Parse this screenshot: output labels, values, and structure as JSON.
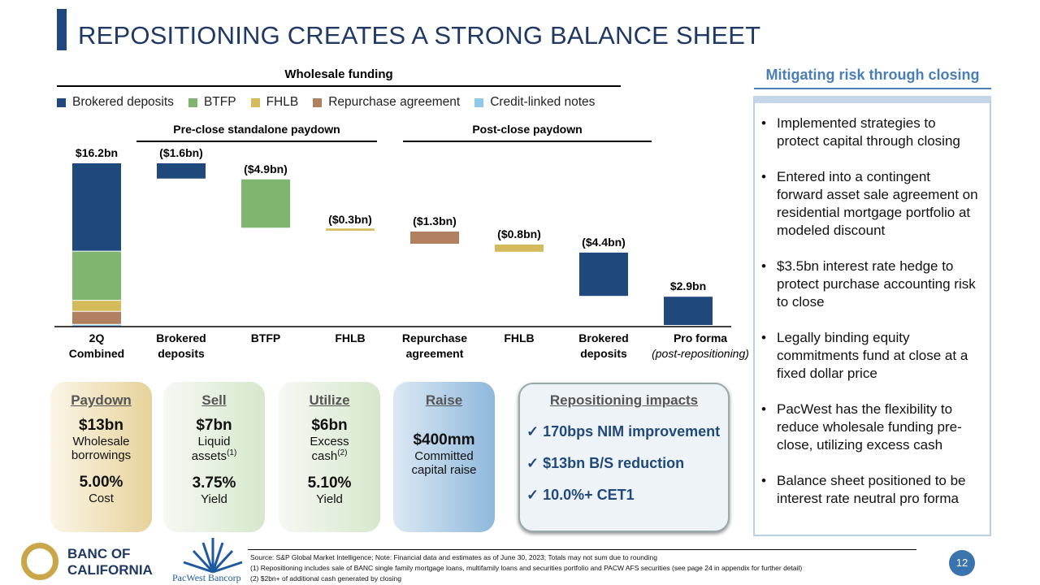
{
  "title": "REPOSITIONING CREATES A STRONG BALANCE SHEET",
  "chart_data": {
    "type": "bar",
    "subtype": "waterfall",
    "title": "Wholesale funding",
    "legend": [
      {
        "name": "Brokered deposits",
        "color": "#1f497d"
      },
      {
        "name": "BTFP",
        "color": "#7fb56f"
      },
      {
        "name": "FHLB",
        "color": "#d4bc5c"
      },
      {
        "name": "Repurchase agreement",
        "color": "#b08060"
      },
      {
        "name": "Credit-linked notes",
        "color": "#8ec8ea"
      }
    ],
    "legend_position": "top",
    "groups": [
      {
        "label": "Pre-close standalone paydown"
      },
      {
        "label": "Post-close paydown"
      }
    ],
    "categories": [
      {
        "label1": "2Q",
        "label2": "Combined"
      },
      {
        "label1": "Brokered",
        "label2": "deposits"
      },
      {
        "label1": "BTFP",
        "label2": ""
      },
      {
        "label1": "FHLB",
        "label2": ""
      },
      {
        "label1": "Repurchase",
        "label2": "agreement"
      },
      {
        "label1": "FHLB",
        "label2": ""
      },
      {
        "label1": "Brokered",
        "label2": "deposits"
      },
      {
        "label1": "Pro forma",
        "label2": "(post-repositioning)"
      }
    ],
    "units": "$bn",
    "total_start": 16.2,
    "stack_start": [
      {
        "series": "Brokered deposits",
        "value": 8.8
      },
      {
        "series": "BTFP",
        "value": 4.9
      },
      {
        "series": "FHLB",
        "value": 1.1
      },
      {
        "series": "Repurchase agreement",
        "value": 1.3
      },
      {
        "series": "Credit-linked notes",
        "value": 0.1
      }
    ],
    "changes": [
      {
        "value": -1.6,
        "series": "Brokered deposits"
      },
      {
        "value": -4.9,
        "series": "BTFP"
      },
      {
        "value": -0.3,
        "series": "FHLB"
      },
      {
        "value": -1.3,
        "series": "Repurchase agreement"
      },
      {
        "value": -0.8,
        "series": "FHLB"
      },
      {
        "value": -4.4,
        "series": "Brokered deposits"
      }
    ],
    "total_end": 2.9,
    "data_labels": [
      "$16.2bn",
      "($1.6bn)",
      "($4.9bn)",
      "($0.3bn)",
      "($1.3bn)",
      "($0.8bn)",
      "($4.4bn)",
      "$2.9bn"
    ],
    "ylim": [
      0,
      16.2
    ],
    "grid": false
  },
  "cards": [
    {
      "head": "Paydown",
      "big": "$13bn",
      "l1": "Wholesale",
      "l2": "borrowings",
      "sup": "",
      "big2": "5.00%",
      "l3": "Cost"
    },
    {
      "head": "Sell",
      "big": "$7bn",
      "l1": "Liquid",
      "l2": "assets",
      "sup": "(1)",
      "big2": "3.75%",
      "l3": "Yield"
    },
    {
      "head": "Utilize",
      "big": "$6bn",
      "l1": "Excess",
      "l2": "cash",
      "sup": "(2)",
      "big2": "5.10%",
      "l3": "Yield"
    },
    {
      "head": "Raise",
      "big": "$400mm",
      "l1": "Committed",
      "l2": "capital  raise"
    }
  ],
  "impacts": {
    "head": "Repositioning impacts",
    "items": [
      "170bps NIM improvement",
      "$13bn B/S reduction",
      "10.0%+ CET1"
    ]
  },
  "right_panel": {
    "title": "Mitigating risk through closing",
    "bullets": [
      "Implemented strategies to protect capital through closing",
      "Entered into a contingent forward asset sale agreement on residential mortgage portfolio at modeled discount",
      "$3.5bn interest rate hedge to protect purchase accounting risk to close",
      "Legally binding equity commitments fund at close at a fixed dollar price",
      "PacWest has the flexibility to reduce wholesale funding pre-close, utilizing excess cash",
      "Balance sheet positioned to be interest rate neutral pro forma"
    ]
  },
  "footer": {
    "lines": [
      "Source: S&P Global Market Intelligence; Note: Financial data and estimates as of June 30, 2023; Totals may not sum due to rounding",
      "(1) Repositioning includes sale of BANC single family mortgage loans, multifamily loans and securities portfolio and PACW AFS securities (see page 24 in appendix for further detail)",
      "(2) $2bn+ of additional cash generated by closing"
    ]
  },
  "logos": {
    "banc": "BANC OF CALIFORNIA",
    "banc1": "BANC OF",
    "banc2": "CALIFORNIA",
    "pacwest": "PacWest Bancorp"
  },
  "page_number": "12"
}
